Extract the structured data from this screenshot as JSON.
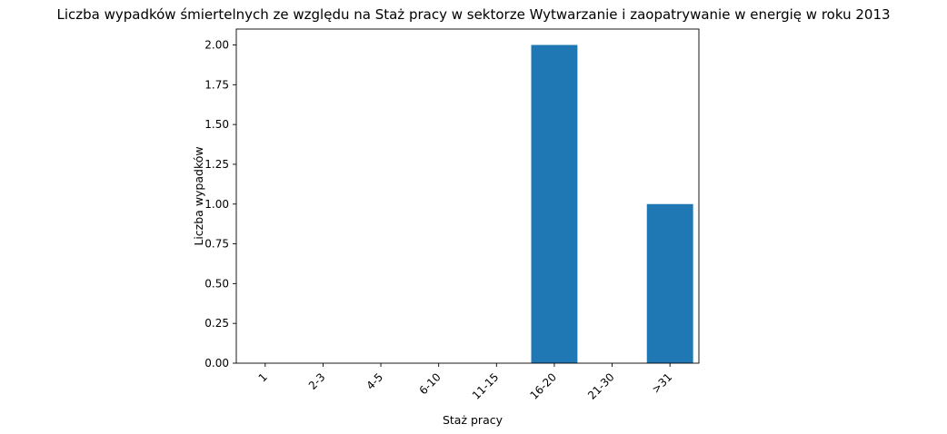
{
  "chart_data": {
    "type": "bar",
    "title": "Liczba wypadków śmiertelnych ze względu na Staż pracy w sektorze Wytwarzanie i zaopatrywanie w energię w roku 2013",
    "xlabel": "Staż pracy",
    "ylabel": "Liczba wypadków",
    "categories": [
      "1",
      "2-3",
      "4-5",
      "6-10",
      "11-15",
      "16-20",
      "21-30",
      ">31"
    ],
    "values": [
      0,
      0,
      0,
      0,
      0,
      2,
      0,
      1
    ],
    "ylim": [
      0,
      2.1
    ],
    "yticks": [
      "0.00",
      "0.25",
      "0.50",
      "0.75",
      "1.00",
      "1.25",
      "1.50",
      "1.75",
      "2.00"
    ],
    "bar_color": "#1f77b4",
    "grid": false
  }
}
